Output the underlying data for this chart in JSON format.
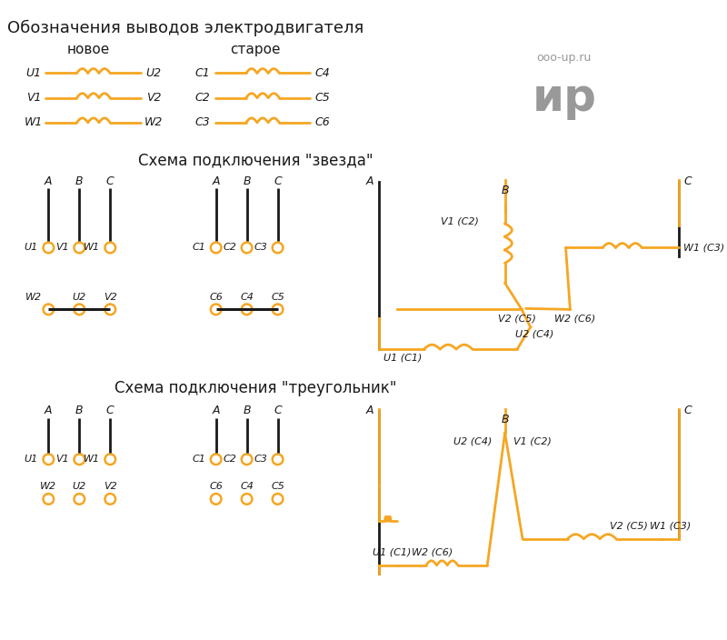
{
  "title": "Обозначения выводов электродвигателя",
  "star_title": "Схема подключения \"звезда\"",
  "triangle_title": "Схема подключения \"треугольник\"",
  "orange": "#F5A623",
  "black": "#1a1a1a",
  "gray": "#999999",
  "bg": "#ffffff",
  "new_label": "новое",
  "old_label": "старое",
  "watermark1": "ooo-up.ru",
  "watermark2": "ир"
}
